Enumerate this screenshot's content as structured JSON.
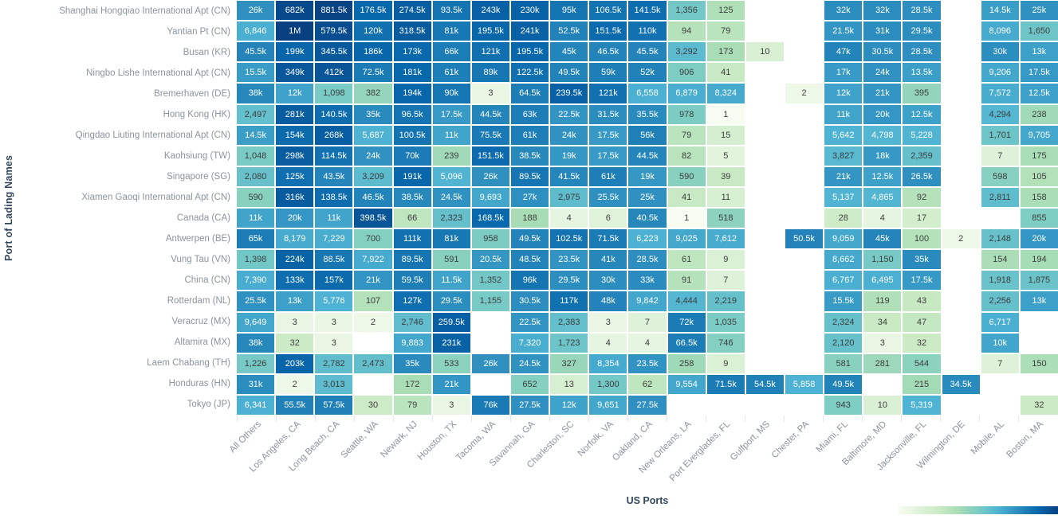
{
  "chart_data": {
    "type": "heatmap",
    "title": "",
    "xlabel": "US Ports",
    "ylabel": "Port of Lading Names",
    "scale": "log",
    "value_range": [
      1,
      1000000
    ],
    "legend_position": "bottom-right",
    "colormap": [
      "#f7fcf0",
      "#e0f3db",
      "#ccebc5",
      "#a8ddb5",
      "#7bccc4",
      "#4eb3d3",
      "#2b8cbe",
      "#0868ac",
      "#084081"
    ],
    "columns": [
      "All Others",
      "Los Angeles, CA",
      "Long Beach, CA",
      "Seattle, WA",
      "Newark, NJ",
      "Houston, TX",
      "Tacoma, WA",
      "Savannah, GA",
      "Charleston, SC",
      "Norfolk, VA",
      "Oakland, CA",
      "New Orleans, LA",
      "Port Everglades, FL",
      "Gulfport, MS",
      "Chester, PA",
      "Miami, FL",
      "Baltimore, MD",
      "Jacksonville, FL",
      "Wilmington, DE",
      "Mobile, AL",
      "Boston, MA"
    ],
    "rows": [
      "Shanghai Hongqiao International Apt (CN)",
      "Yantian Pt (CN)",
      "Busan (KR)",
      "Ningbo Lishe International Apt (CN)",
      "Bremerhaven (DE)",
      "Hong Kong (HK)",
      "Qingdao Liuting International Apt (CN)",
      "Kaohsiung (TW)",
      "Singapore (SG)",
      "Xiamen Gaoqi International Apt (CN)",
      "Canada (CA)",
      "Antwerpen (BE)",
      "Vung Tau (VN)",
      "China (CN)",
      "Rotterdam (NL)",
      "Veracruz (MX)",
      "Altamira (MX)",
      "Laem Chabang (TH)",
      "Honduras (HN)",
      "Tokyo (JP)"
    ],
    "cells": [
      [
        "26k",
        "682k",
        "881.5k",
        "176.5k",
        "274.5k",
        "93.5k",
        "243k",
        "230k",
        "95k",
        "106.5k",
        "141.5k",
        "1,356",
        "125",
        null,
        null,
        "32k",
        "32k",
        "28.5k",
        null,
        "14.5k",
        "25k"
      ],
      [
        "6,846",
        "1M",
        "579.5k",
        "120k",
        "318.5k",
        "81k",
        "195.5k",
        "241k",
        "52.5k",
        "151.5k",
        "110k",
        "94",
        "79",
        null,
        null,
        "21.5k",
        "31k",
        "29.5k",
        null,
        "8,096",
        "1,650"
      ],
      [
        "45.5k",
        "199k",
        "345.5k",
        "186k",
        "173k",
        "66k",
        "121k",
        "195.5k",
        "45k",
        "46.5k",
        "45.5k",
        "3,292",
        "173",
        "10",
        null,
        "47k",
        "30.5k",
        "28.5k",
        null,
        "30k",
        "13k"
      ],
      [
        "15.5k",
        "349k",
        "412k",
        "72.5k",
        "181k",
        "61k",
        "89k",
        "122.5k",
        "49.5k",
        "59k",
        "52k",
        "906",
        "41",
        null,
        null,
        "17k",
        "24k",
        "13.5k",
        null,
        "9,206",
        "17.5k"
      ],
      [
        "38k",
        "12k",
        "1,098",
        "382",
        "194k",
        "90k",
        "3",
        "64.5k",
        "239.5k",
        "121k",
        "6,558",
        "6,879",
        "8,324",
        null,
        "2",
        "12k",
        "21k",
        "395",
        null,
        "7,572",
        "12.5k"
      ],
      [
        "2,497",
        "281k",
        "140.5k",
        "35k",
        "96.5k",
        "17.5k",
        "44.5k",
        "63k",
        "22.5k",
        "31.5k",
        "35.5k",
        "978",
        "1",
        null,
        null,
        "11k",
        "20k",
        "12.5k",
        null,
        "4,294",
        "238"
      ],
      [
        "14.5k",
        "154k",
        "268k",
        "5,687",
        "100.5k",
        "11k",
        "75.5k",
        "61k",
        "24k",
        "17.5k",
        "56k",
        "79",
        "15",
        null,
        null,
        "5,642",
        "4,798",
        "5,228",
        null,
        "1,701",
        "9,705"
      ],
      [
        "1,048",
        "298k",
        "114.5k",
        "24k",
        "70k",
        "239",
        "151.5k",
        "38.5k",
        "19k",
        "17.5k",
        "44.5k",
        "82",
        "5",
        null,
        null,
        "3,827",
        "18k",
        "2,359",
        null,
        "7",
        "175"
      ],
      [
        "2,080",
        "125k",
        "43.5k",
        "3,209",
        "191k",
        "5,096",
        "26k",
        "89.5k",
        "41.5k",
        "61k",
        "19k",
        "590",
        "39",
        null,
        null,
        "21k",
        "12.5k",
        "26.5k",
        null,
        "598",
        "105"
      ],
      [
        "590",
        "316k",
        "138.5k",
        "46.5k",
        "38.5k",
        "24.5k",
        "9,693",
        "27k",
        "2,975",
        "25.5k",
        "25k",
        "41",
        "11",
        null,
        null,
        "5,137",
        "4,865",
        "92",
        null,
        "2,811",
        "158"
      ],
      [
        "11k",
        "20k",
        "11k",
        "398.5k",
        "66",
        "2,323",
        "168.5k",
        "188",
        "4",
        "6",
        "40.5k",
        "1",
        "518",
        null,
        null,
        "28",
        "4",
        "17",
        null,
        null,
        "855"
      ],
      [
        "65k",
        "8,179",
        "7,229",
        "700",
        "111k",
        "81k",
        "958",
        "49.5k",
        "102.5k",
        "71.5k",
        "6,223",
        "9,025",
        "7,612",
        null,
        "50.5k",
        "9,059",
        "45k",
        "100",
        "2",
        "2,148",
        "20k"
      ],
      [
        "1,398",
        "224k",
        "88.5k",
        "7,922",
        "89.5k",
        "591",
        "20.5k",
        "48.5k",
        "23.5k",
        "41k",
        "28.5k",
        "61",
        "9",
        null,
        null,
        "8,662",
        "1,150",
        "35k",
        null,
        "154",
        "194"
      ],
      [
        "7,390",
        "133k",
        "157k",
        "21k",
        "59.5k",
        "11.5k",
        "1,352",
        "96k",
        "29.5k",
        "30k",
        "33k",
        "91",
        "7",
        null,
        null,
        "6,767",
        "6,495",
        "17.5k",
        null,
        "1,918",
        "1,875"
      ],
      [
        "25.5k",
        "13k",
        "5,776",
        "107",
        "127k",
        "29.5k",
        "1,155",
        "30.5k",
        "117k",
        "48k",
        "9,842",
        "4,444",
        "2,219",
        null,
        null,
        "15.5k",
        "119",
        "43",
        null,
        "2,256",
        "13k"
      ],
      [
        "9,649",
        "3",
        "3",
        "2",
        "2,746",
        "259.5k",
        null,
        "22.5k",
        "2,383",
        "3",
        "7",
        "72k",
        "1,035",
        null,
        null,
        "2,324",
        "34",
        "47",
        null,
        "6,717",
        null
      ],
      [
        "38k",
        "32",
        "3",
        null,
        "9,883",
        "231k",
        null,
        "7,320",
        "1,723",
        "4",
        "4",
        "66.5k",
        "746",
        null,
        null,
        "2,120",
        "3",
        "32",
        null,
        "10k",
        null
      ],
      [
        "1,226",
        "203k",
        "2,782",
        "2,473",
        "35k",
        "533",
        "26k",
        "24.5k",
        "327",
        "8,354",
        "23.5k",
        "258",
        "9",
        null,
        null,
        "581",
        "281",
        "544",
        null,
        "7",
        "150"
      ],
      [
        "31k",
        "2",
        "3,013",
        null,
        "172",
        "21k",
        null,
        "652",
        "13",
        "1,300",
        "62",
        "9,554",
        "71.5k",
        "54.5k",
        "5,858",
        "49.5k",
        null,
        "215",
        "34.5k",
        null,
        null
      ],
      [
        "6,341",
        "55.5k",
        "57.5k",
        "30",
        "79",
        "3",
        "76k",
        "27.5k",
        "12k",
        "9,651",
        "27.5k",
        null,
        null,
        null,
        null,
        "943",
        "10",
        "5,319",
        null,
        null,
        "32"
      ]
    ]
  },
  "colors": {
    "label_gray": "#8b949c",
    "axis_title": "#33475c",
    "tick_line": "#e3e6f0",
    "cell_text_dark": "#3d3d3d",
    "cell_text_light": "#ffffff"
  }
}
